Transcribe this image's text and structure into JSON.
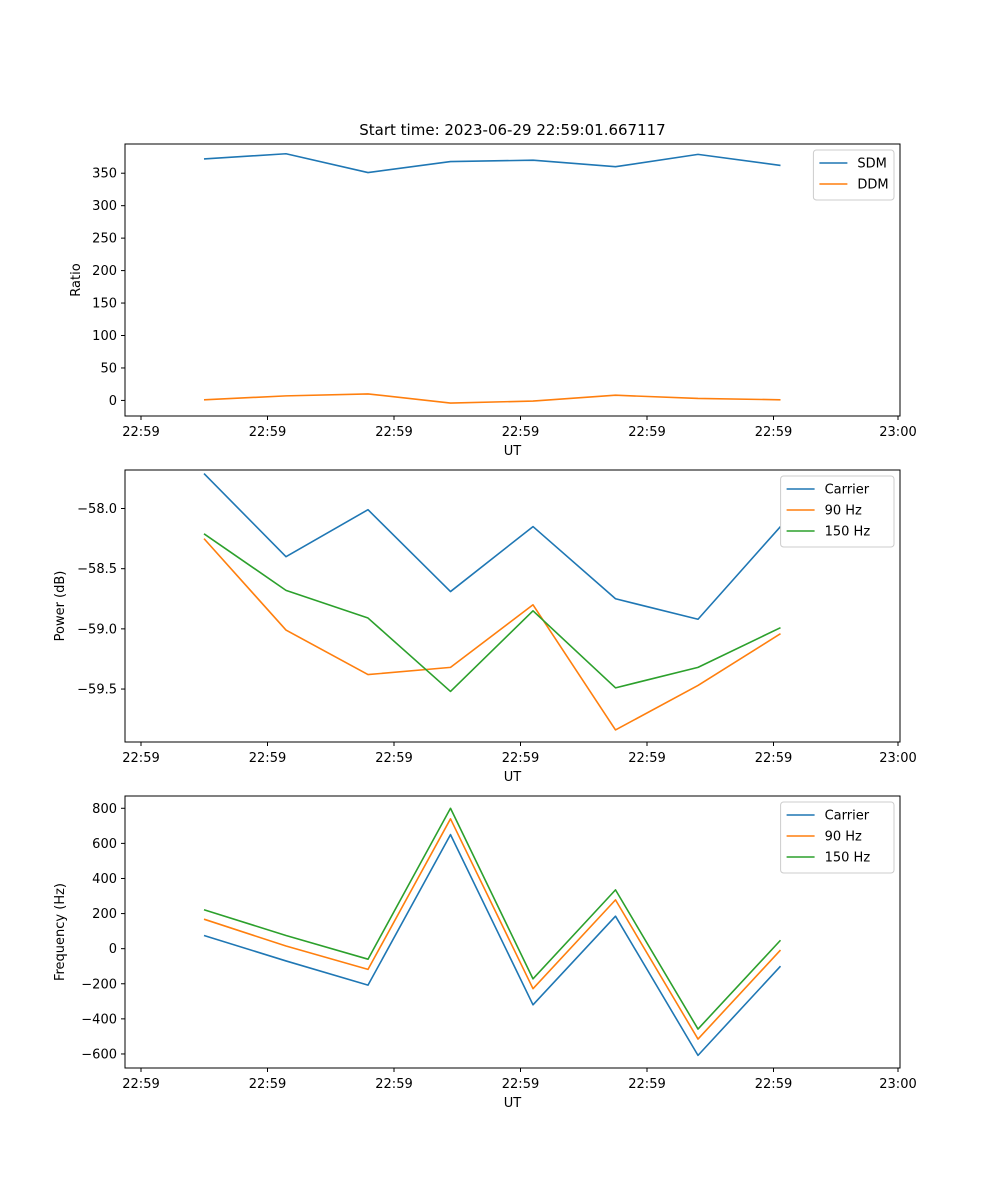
{
  "figure": {
    "title": "Start time: 2023-06-29 22:59:01.667117"
  },
  "chart_data": [
    {
      "type": "line",
      "title": "Start time: 2023-06-29 22:59:01.667117",
      "xlabel": "UT",
      "ylabel": "Ratio",
      "x": [
        "22:59",
        "22:59",
        "22:59",
        "22:59",
        "22:59",
        "22:59",
        "22:59",
        "22:59"
      ],
      "xticks": [
        "22:59",
        "22:59",
        "22:59",
        "22:59",
        "22:59",
        "22:59",
        "23:00"
      ],
      "ylim": [
        -24,
        395
      ],
      "yticks": [
        0,
        50,
        100,
        150,
        200,
        250,
        300,
        350
      ],
      "ytick_labels": [
        "0",
        "50",
        "100",
        "150",
        "200",
        "250",
        "300",
        "350"
      ],
      "legend_position": "upper right",
      "series": [
        {
          "name": "SDM",
          "color": "#1f77b4",
          "values": [
            372,
            380,
            351,
            368,
            370,
            360,
            379,
            362
          ]
        },
        {
          "name": "DDM",
          "color": "#ff7f0e",
          "values": [
            1,
            7,
            10,
            -4,
            -1,
            8,
            3,
            1
          ]
        }
      ]
    },
    {
      "type": "line",
      "title": "",
      "xlabel": "UT",
      "ylabel": "Power (dB)",
      "x": [
        "22:59",
        "22:59",
        "22:59",
        "22:59",
        "22:59",
        "22:59",
        "22:59",
        "22:59"
      ],
      "xticks": [
        "22:59",
        "22:59",
        "22:59",
        "22:59",
        "22:59",
        "22:59",
        "23:00"
      ],
      "ylim": [
        -59.94,
        -57.68
      ],
      "yticks": [
        -58.0,
        -58.5,
        -59.0,
        -59.5
      ],
      "ytick_labels": [
        "−58.0",
        "−58.5",
        "−59.0",
        "−59.5"
      ],
      "legend_position": "upper right",
      "series": [
        {
          "name": "Carrier",
          "color": "#1f77b4",
          "values": [
            -57.71,
            -58.4,
            -58.01,
            -58.69,
            -58.15,
            -58.75,
            -58.92,
            -58.15
          ]
        },
        {
          "name": "90 Hz",
          "color": "#ff7f0e",
          "values": [
            -58.25,
            -59.01,
            -59.38,
            -59.32,
            -58.8,
            -59.84,
            -59.47,
            -59.04
          ]
        },
        {
          "name": "150 Hz",
          "color": "#2ca02c",
          "values": [
            -58.21,
            -58.68,
            -58.91,
            -59.52,
            -58.85,
            -59.49,
            -59.32,
            -58.99
          ]
        }
      ]
    },
    {
      "type": "line",
      "title": "",
      "xlabel": "UT",
      "ylabel": "Frequency (Hz)",
      "x": [
        "22:59",
        "22:59",
        "22:59",
        "22:59",
        "22:59",
        "22:59",
        "22:59",
        "22:59"
      ],
      "xticks": [
        "22:59",
        "22:59",
        "22:59",
        "22:59",
        "22:59",
        "22:59",
        "23:00"
      ],
      "ylim": [
        -680,
        870
      ],
      "yticks": [
        800,
        600,
        400,
        200,
        0,
        -200,
        -400,
        -600
      ],
      "ytick_labels": [
        "800",
        "600",
        "400",
        "200",
        "0",
        "−200",
        "−400",
        "−600"
      ],
      "legend_position": "upper right",
      "series": [
        {
          "name": "Carrier",
          "color": "#1f77b4",
          "values": [
            75,
            -70,
            -208,
            650,
            -320,
            185,
            -608,
            -100
          ]
        },
        {
          "name": "90 Hz",
          "color": "#ff7f0e",
          "values": [
            168,
            15,
            -118,
            740,
            -228,
            278,
            -515,
            -8
          ]
        },
        {
          "name": "150 Hz",
          "color": "#2ca02c",
          "values": [
            222,
            75,
            -60,
            800,
            -172,
            335,
            -458,
            48
          ]
        }
      ]
    }
  ]
}
